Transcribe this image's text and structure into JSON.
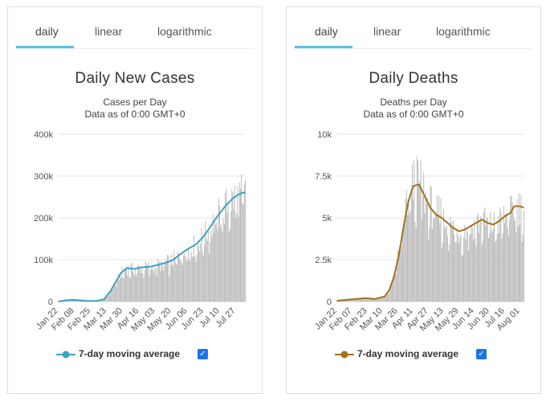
{
  "tabs": [
    "daily",
    "linear",
    "logarithmic"
  ],
  "legend_checked": "✓",
  "chart_data": [
    {
      "type": "bar",
      "title": "Daily New Cases",
      "subtitle": "Cases per Day",
      "subtitle2": "Data as of 0:00 GMT+0",
      "ylim": [
        0,
        400000
      ],
      "yticks": [
        0,
        100000,
        200000,
        300000,
        400000
      ],
      "ytick_labels": [
        "0",
        "100k",
        "200k",
        "300k",
        "400k"
      ],
      "x_tick_labels": [
        "Jan 22",
        "Feb 08",
        "Feb 25",
        "Mar 13",
        "Mar 30",
        "Apr 16",
        "May 03",
        "May 20",
        "Jun 06",
        "Jun 23",
        "Jul 10",
        "Jul 27"
      ],
      "x_tick_index": [
        0,
        17,
        34,
        51,
        68,
        85,
        102,
        119,
        136,
        153,
        170,
        187
      ],
      "bar_color": "#b8b8b8",
      "line_color": "#3ea3c1",
      "legend": "7-day moving average",
      "avg_keys": [
        [
          0,
          0
        ],
        [
          8,
          3000
        ],
        [
          16,
          4000
        ],
        [
          22,
          3000
        ],
        [
          30,
          1500
        ],
        [
          40,
          1500
        ],
        [
          48,
          5000
        ],
        [
          55,
          25000
        ],
        [
          60,
          45000
        ],
        [
          66,
          68000
        ],
        [
          72,
          80000
        ],
        [
          80,
          78000
        ],
        [
          88,
          82000
        ],
        [
          96,
          83000
        ],
        [
          104,
          87000
        ],
        [
          112,
          92000
        ],
        [
          120,
          98000
        ],
        [
          128,
          112000
        ],
        [
          136,
          125000
        ],
        [
          144,
          135000
        ],
        [
          152,
          152000
        ],
        [
          160,
          178000
        ],
        [
          168,
          205000
        ],
        [
          176,
          228000
        ],
        [
          184,
          247000
        ],
        [
          190,
          256000
        ],
        [
          195,
          261000
        ],
        [
          197,
          259000
        ]
      ]
    },
    {
      "type": "bar",
      "title": "Daily Deaths",
      "subtitle": "Deaths per Day",
      "subtitle2": "Data as of 0:00 GMT+0",
      "ylim": [
        0,
        10000
      ],
      "yticks": [
        0,
        2500,
        5000,
        7500,
        10000
      ],
      "ytick_labels": [
        "0",
        "2.5k",
        "5k",
        "7.5k",
        "10k"
      ],
      "x_tick_labels": [
        "Jan 22",
        "Feb 07",
        "Feb 23",
        "Mar 10",
        "Mar 26",
        "Apr 11",
        "Apr 27",
        "May 13",
        "May 29",
        "Jun 14",
        "Jun 30",
        "Jul 16",
        "Aug 01"
      ],
      "x_tick_index": [
        0,
        16,
        32,
        48,
        64,
        80,
        96,
        112,
        128,
        144,
        160,
        176,
        192
      ],
      "bar_color": "#b8b8b8",
      "line_color": "#a0731b",
      "legend": "7-day moving average",
      "avg_keys": [
        [
          0,
          50
        ],
        [
          10,
          100
        ],
        [
          20,
          150
        ],
        [
          30,
          200
        ],
        [
          40,
          150
        ],
        [
          50,
          300
        ],
        [
          55,
          700
        ],
        [
          60,
          1500
        ],
        [
          65,
          2800
        ],
        [
          70,
          4500
        ],
        [
          75,
          6000
        ],
        [
          80,
          6900
        ],
        [
          86,
          7000
        ],
        [
          92,
          6300
        ],
        [
          98,
          5600
        ],
        [
          104,
          5200
        ],
        [
          110,
          5000
        ],
        [
          116,
          4700
        ],
        [
          122,
          4400
        ],
        [
          128,
          4200
        ],
        [
          134,
          4300
        ],
        [
          140,
          4500
        ],
        [
          146,
          4700
        ],
        [
          152,
          4900
        ],
        [
          158,
          4700
        ],
        [
          164,
          4600
        ],
        [
          170,
          4800
        ],
        [
          176,
          5100
        ],
        [
          182,
          5300
        ],
        [
          186,
          5700
        ],
        [
          192,
          5700
        ],
        [
          196,
          5600
        ]
      ]
    }
  ]
}
